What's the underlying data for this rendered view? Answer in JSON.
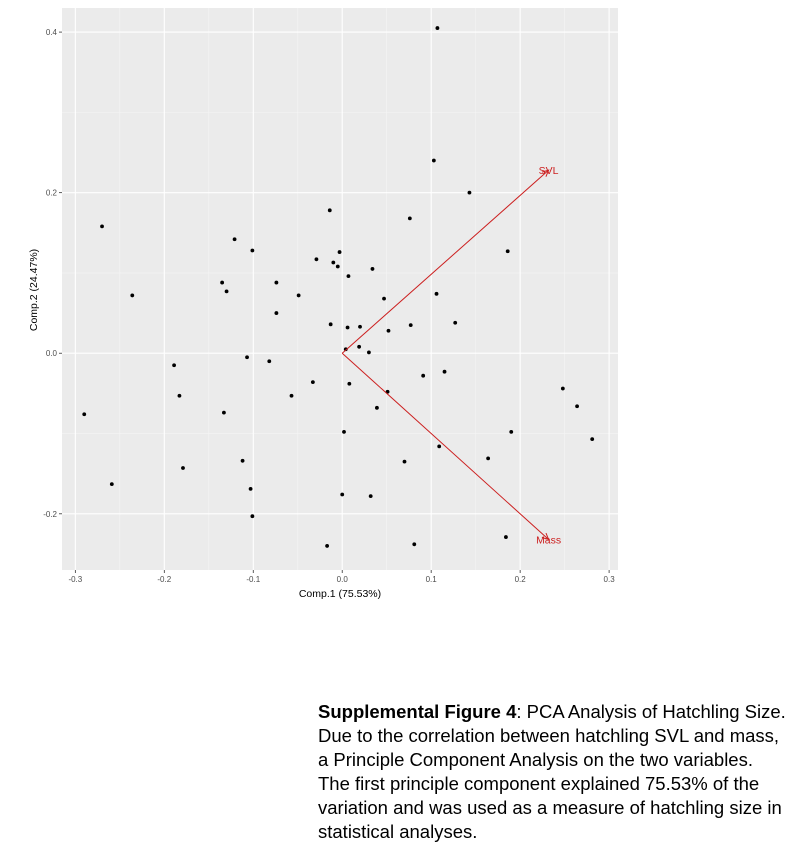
{
  "chart_data": {
    "type": "scatter",
    "xlabel": "Comp.1 (75.53%)",
    "ylabel": "Comp.2 (24.47%)",
    "xlim": [
      -0.315,
      0.31
    ],
    "ylim": [
      -0.27,
      0.43
    ],
    "x_ticks": [
      -0.3,
      -0.2,
      -0.1,
      0.0,
      0.1,
      0.2,
      0.3
    ],
    "x_tick_labels": [
      "-0.3",
      "-0.2",
      "-0.1",
      "0.0",
      "0.1",
      "0.2",
      "0.3"
    ],
    "y_ticks": [
      -0.2,
      0.0,
      0.2,
      0.4
    ],
    "y_tick_labels": [
      "-0.2",
      "0.0",
      "0.2",
      "0.4"
    ],
    "grid": true,
    "background": "#ebebeb",
    "point_color": "#000000",
    "loading_color": "#cc1f1f",
    "points": [
      {
        "x": 0.107,
        "y": 0.405
      },
      {
        "x": 0.103,
        "y": 0.24
      },
      {
        "x": 0.143,
        "y": 0.2
      },
      {
        "x": -0.014,
        "y": 0.178
      },
      {
        "x": 0.076,
        "y": 0.168
      },
      {
        "x": -0.27,
        "y": 0.158
      },
      {
        "x": -0.121,
        "y": 0.142
      },
      {
        "x": -0.101,
        "y": 0.128
      },
      {
        "x": -0.003,
        "y": 0.126
      },
      {
        "x": 0.186,
        "y": 0.127
      },
      {
        "x": -0.029,
        "y": 0.117
      },
      {
        "x": -0.01,
        "y": 0.113
      },
      {
        "x": -0.005,
        "y": 0.108
      },
      {
        "x": 0.034,
        "y": 0.105
      },
      {
        "x": 0.007,
        "y": 0.096
      },
      {
        "x": -0.135,
        "y": 0.088
      },
      {
        "x": -0.074,
        "y": 0.088
      },
      {
        "x": -0.13,
        "y": 0.077
      },
      {
        "x": -0.236,
        "y": 0.072
      },
      {
        "x": -0.049,
        "y": 0.072
      },
      {
        "x": 0.106,
        "y": 0.074
      },
      {
        "x": 0.047,
        "y": 0.068
      },
      {
        "x": -0.074,
        "y": 0.05
      },
      {
        "x": 0.127,
        "y": 0.038
      },
      {
        "x": -0.013,
        "y": 0.036
      },
      {
        "x": 0.077,
        "y": 0.035
      },
      {
        "x": 0.006,
        "y": 0.032
      },
      {
        "x": 0.02,
        "y": 0.033
      },
      {
        "x": 0.052,
        "y": 0.028
      },
      {
        "x": 0.019,
        "y": 0.008
      },
      {
        "x": 0.004,
        "y": 0.005
      },
      {
        "x": 0.03,
        "y": 0.001
      },
      {
        "x": -0.107,
        "y": -0.005
      },
      {
        "x": -0.082,
        "y": -0.01
      },
      {
        "x": -0.189,
        "y": -0.015
      },
      {
        "x": 0.115,
        "y": -0.023
      },
      {
        "x": 0.091,
        "y": -0.028
      },
      {
        "x": -0.033,
        "y": -0.036
      },
      {
        "x": 0.008,
        "y": -0.038
      },
      {
        "x": 0.051,
        "y": -0.048
      },
      {
        "x": -0.183,
        "y": -0.053
      },
      {
        "x": -0.057,
        "y": -0.053
      },
      {
        "x": 0.248,
        "y": -0.044
      },
      {
        "x": 0.264,
        "y": -0.066
      },
      {
        "x": 0.039,
        "y": -0.068
      },
      {
        "x": -0.29,
        "y": -0.076
      },
      {
        "x": -0.133,
        "y": -0.074
      },
      {
        "x": 0.002,
        "y": -0.098
      },
      {
        "x": 0.19,
        "y": -0.098
      },
      {
        "x": 0.281,
        "y": -0.107
      },
      {
        "x": 0.109,
        "y": -0.116
      },
      {
        "x": 0.164,
        "y": -0.131
      },
      {
        "x": -0.112,
        "y": -0.134
      },
      {
        "x": 0.07,
        "y": -0.135
      },
      {
        "x": -0.179,
        "y": -0.143
      },
      {
        "x": -0.259,
        "y": -0.163
      },
      {
        "x": -0.103,
        "y": -0.169
      },
      {
        "x": 0.0,
        "y": -0.176
      },
      {
        "x": 0.032,
        "y": -0.178
      },
      {
        "x": -0.101,
        "y": -0.203
      },
      {
        "x": 0.184,
        "y": -0.229
      },
      {
        "x": -0.017,
        "y": -0.24
      },
      {
        "x": 0.081,
        "y": -0.238
      }
    ],
    "loadings": [
      {
        "name": "SVL",
        "x": 0.232,
        "y": 0.228
      },
      {
        "name": "Mass",
        "x": 0.232,
        "y": -0.232
      }
    ]
  },
  "caption": {
    "bold": "Supplemental Figure  4",
    "text": ": PCA Analysis of Hatchling Size. Due to the correlation between hatchling SVL and mass, a Principle Component Analysis on the two variables. The first principle component explained 75.53% of the variation and was used as a measure of hatchling size in statistical analyses."
  }
}
